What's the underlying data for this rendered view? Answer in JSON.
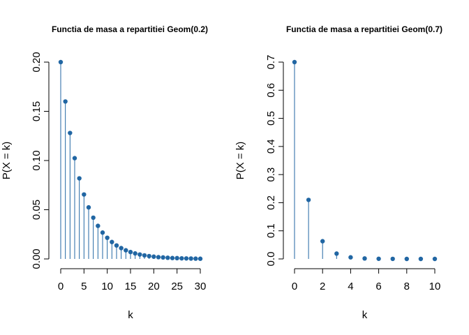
{
  "chart_data": [
    {
      "type": "stem",
      "title": "Functia de masa a repartitiei Geom(0.2)",
      "xlabel": "k",
      "ylabel": "P(X = k)",
      "color": "#2166a3",
      "xlim": [
        0,
        30
      ],
      "ylim": [
        0,
        0.2
      ],
      "xticks": [
        0,
        5,
        10,
        15,
        20,
        25,
        30
      ],
      "xtick_labels": [
        "0",
        "5",
        "10",
        "15",
        "20",
        "25",
        "30"
      ],
      "yticks": [
        0,
        0.05,
        0.1,
        0.15,
        0.2
      ],
      "ytick_labels": [
        "0.00",
        "0.05",
        "0.10",
        "0.15",
        "0.20"
      ],
      "x": [
        0,
        1,
        2,
        3,
        4,
        5,
        6,
        7,
        8,
        9,
        10,
        11,
        12,
        13,
        14,
        15,
        16,
        17,
        18,
        19,
        20,
        21,
        22,
        23,
        24,
        25,
        26,
        27,
        28,
        29,
        30
      ],
      "values": [
        0.2,
        0.16,
        0.128,
        0.1024,
        0.0819,
        0.0655,
        0.0524,
        0.0419,
        0.0336,
        0.0268,
        0.0215,
        0.0172,
        0.0137,
        0.011,
        0.0088,
        0.007,
        0.0056,
        0.0045,
        0.0036,
        0.0029,
        0.0023,
        0.0018,
        0.0015,
        0.0012,
        0.0009,
        0.0008,
        0.0006,
        0.0005,
        0.0004,
        0.0003,
        0.0002
      ]
    },
    {
      "type": "stem",
      "title": "Functia de masa a repartitiei Geom(0.7)",
      "xlabel": "k",
      "ylabel": "P(X = k)",
      "color": "#2166a3",
      "xlim": [
        0,
        10
      ],
      "ylim": [
        0,
        0.7
      ],
      "xticks": [
        0,
        2,
        4,
        6,
        8,
        10
      ],
      "xtick_labels": [
        "0",
        "2",
        "4",
        "6",
        "8",
        "10"
      ],
      "yticks": [
        0,
        0.1,
        0.2,
        0.3,
        0.4,
        0.5,
        0.6,
        0.7
      ],
      "ytick_labels": [
        "0.0",
        "0.1",
        "0.2",
        "0.3",
        "0.4",
        "0.5",
        "0.6",
        "0.7"
      ],
      "x": [
        0,
        1,
        2,
        3,
        4,
        5,
        6,
        7,
        8,
        9,
        10
      ],
      "values": [
        0.7,
        0.21,
        0.063,
        0.0189,
        0.0057,
        0.0017,
        0.0005,
        0.0002,
        0.0,
        0.0,
        0.0
      ]
    }
  ]
}
